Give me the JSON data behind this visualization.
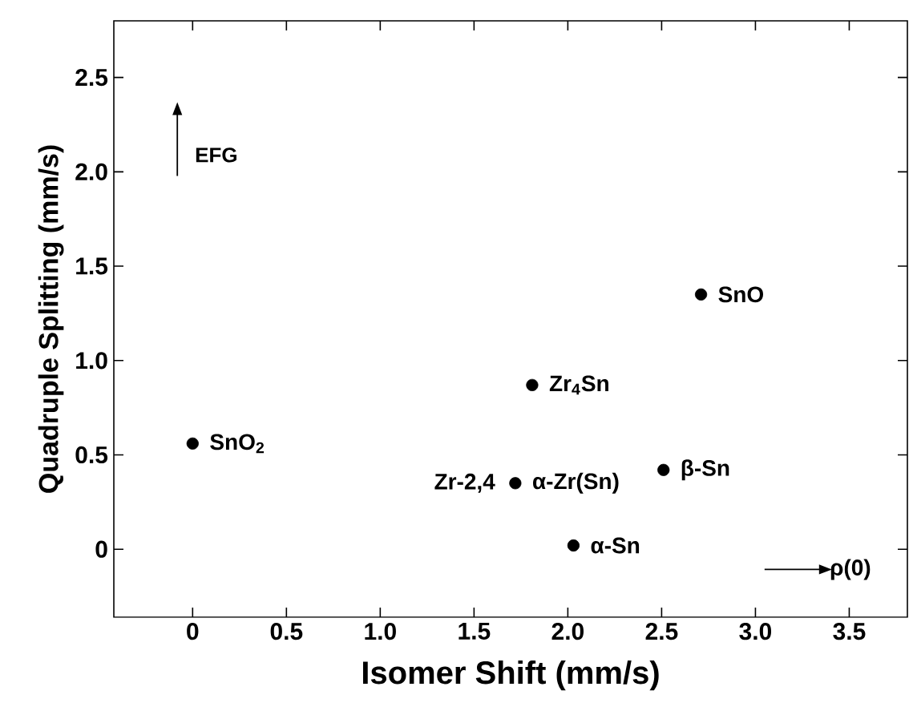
{
  "chart_data": {
    "type": "scatter",
    "xlabel": "Isomer Shift (mm/s)",
    "ylabel": "Quadruple Splitting (mm/s)",
    "xlim": [
      -0.42,
      3.81
    ],
    "ylim": [
      -0.36,
      2.8
    ],
    "xticks": [
      0,
      0.5,
      {
        "value": 1,
        "label": "1.0"
      },
      1.5,
      {
        "value": 2,
        "label": "2.0"
      },
      2.5,
      {
        "value": 3,
        "label": "3.0"
      },
      3.5
    ],
    "yticks": [
      0,
      0.5,
      {
        "value": 1,
        "label": "1.0"
      },
      1.5,
      {
        "value": 2,
        "label": "2.0"
      },
      2.5
    ],
    "grid": false,
    "marker": "circle",
    "series": [
      {
        "color": "#000000",
        "x": [
          0,
          1.81,
          2.71,
          2.51,
          1.72,
          2.03
        ],
        "values": [
          0.56,
          0.87,
          1.35,
          0.42,
          0.35,
          0.02
        ]
      }
    ],
    "annotations": [
      "EFG",
      "ρ(0)",
      {
        "text": "SnO$_{2}$",
        "x": 0,
        "y": 0.56
      },
      {
        "text": "Zr$_{4}$Sn",
        "x": 1.81,
        "y": 0.87
      },
      {
        "text": "SnO",
        "x": 2.71,
        "y": 1.35
      },
      {
        "text": "β-Sn",
        "x": 2.51,
        "y": 0.42
      },
      {
        "text": "Zr-2,4",
        "x": 1.72,
        "y": 0.35
      },
      {
        "text": "α-Zr(Sn)",
        "x": 1.72,
        "y": 0.35
      },
      {
        "text": "α-Sn",
        "x": 2.03,
        "y": 0.02
      }
    ]
  }
}
